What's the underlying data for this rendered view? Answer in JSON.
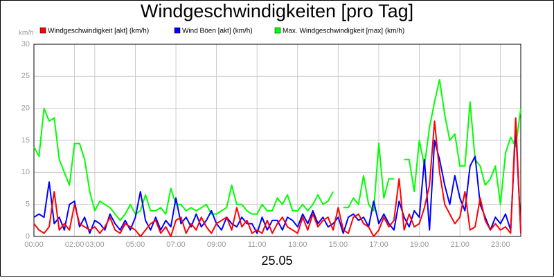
{
  "chart_data": {
    "type": "line",
    "title": "Windgeschwindigkeiten [pro Tag]",
    "xlabel": "25.05",
    "ylabel": "km/h",
    "x": [
      0,
      0.25,
      0.5,
      0.75,
      1,
      1.25,
      1.5,
      1.75,
      2,
      2.25,
      2.5,
      2.75,
      3,
      3.25,
      3.5,
      3.75,
      4,
      4.25,
      4.5,
      4.75,
      5,
      5.25,
      5.5,
      5.75,
      6,
      6.25,
      6.5,
      6.75,
      7,
      7.25,
      7.5,
      7.75,
      8,
      8.25,
      8.5,
      8.75,
      9,
      9.25,
      9.5,
      9.75,
      10,
      10.25,
      10.5,
      10.75,
      11,
      11.25,
      11.5,
      11.75,
      12,
      12.25,
      12.5,
      12.75,
      13,
      13.25,
      13.5,
      13.75,
      14,
      14.25,
      14.5,
      14.75,
      15,
      15.25,
      15.5,
      15.75,
      16,
      16.25,
      16.5,
      16.75,
      17,
      17.25,
      17.5,
      17.75,
      18,
      18.25,
      18.5,
      18.75,
      19,
      19.25,
      19.5,
      19.75,
      20,
      20.25,
      20.5,
      20.75,
      21,
      21.25,
      21.5,
      21.75,
      22,
      22.25,
      22.5,
      22.75,
      23,
      23.25,
      23.5,
      23.75,
      24
    ],
    "series": [
      {
        "name": "Windgeschwindigkeit [akt] (km/h)",
        "color": "#ff0000",
        "values": [
          2,
          1,
          0.5,
          1.5,
          7,
          1,
          2,
          1,
          5,
          2,
          1.5,
          1,
          1.5,
          0.5,
          1.5,
          3,
          1,
          0.5,
          2,
          1.5,
          1,
          0,
          1,
          2,
          2.5,
          0.5,
          1.5,
          0,
          2.5,
          3,
          0.5,
          2,
          1,
          3,
          1.5,
          0.5,
          2,
          2.5,
          3,
          1,
          4.5,
          1.5,
          2.5,
          0.5,
          1,
          0.5,
          2.5,
          0.5,
          2,
          3,
          1.5,
          1,
          0.5,
          3,
          1,
          3.5,
          1.5,
          2.5,
          3,
          1,
          4.5,
          1,
          0.5,
          3,
          3.5,
          2,
          1.5,
          0,
          1,
          3,
          1.5,
          2.5,
          9,
          1,
          3.5,
          1.5,
          2,
          4.5,
          8,
          18,
          10,
          5,
          3.5,
          2,
          3,
          7,
          1,
          1.5,
          6,
          2.5,
          1,
          2,
          1,
          1.5,
          0.5,
          18.5,
          0.5
        ]
      },
      {
        "name": "Wind Böen [akt] (km/h)",
        "color": "#0000ff",
        "values": [
          3,
          3.5,
          3,
          8.5,
          2,
          3,
          1,
          5,
          5.5,
          1.5,
          3,
          0.5,
          2.5,
          2,
          1,
          3.5,
          2,
          1,
          2.5,
          1,
          3,
          7,
          2.5,
          1,
          3,
          1,
          2.5,
          1.5,
          6,
          2,
          3,
          1.5,
          3.5,
          1.5,
          2.5,
          4,
          2,
          1,
          3,
          2,
          1.5,
          3,
          2,
          2,
          0.5,
          3,
          1,
          2.5,
          2.5,
          1,
          3,
          2.5,
          1.5,
          3.5,
          2,
          4,
          2,
          3,
          1.5,
          2,
          3,
          0.5,
          3,
          3.5,
          2.5,
          3,
          1.5,
          5.5,
          2,
          3.5,
          2,
          1,
          5.5,
          3,
          1.5,
          4,
          3,
          12,
          1,
          15,
          12,
          8,
          5,
          9.5,
          6,
          4,
          11,
          12.5,
          5,
          3,
          1,
          3,
          2,
          3.5,
          1,
          17,
          1
        ]
      },
      {
        "name": "Max. Windgeschwindigkeit [max] (km/h)",
        "color": "#00ff00",
        "values": [
          14,
          12.5,
          20,
          18,
          18.5,
          12,
          10,
          8,
          14.5,
          14.5,
          12,
          7,
          4,
          5.5,
          5,
          4.5,
          3.5,
          2.5,
          3.5,
          5,
          3.5,
          4,
          6.5,
          4,
          4,
          4.5,
          3.5,
          7.5,
          5,
          5,
          4,
          4.5,
          4,
          4.5,
          5,
          3.5,
          3.5,
          4,
          4.5,
          8,
          5,
          5,
          4,
          3.5,
          3.5,
          5,
          4,
          4,
          6,
          5,
          6.5,
          4,
          4,
          5,
          4,
          5,
          6.5,
          5,
          5.5,
          7,
          null,
          4.5,
          4.5,
          6,
          5,
          9.5,
          5,
          4,
          14.5,
          6,
          9,
          9,
          null,
          12,
          12,
          7,
          15,
          11,
          17,
          21,
          24.5,
          19,
          15,
          16,
          11,
          11,
          21,
          12,
          11,
          8,
          9,
          11,
          5,
          13,
          15.5,
          14,
          20
        ]
      }
    ],
    "xlim": [
      0,
      24
    ],
    "xticks": [
      {
        "value": 0,
        "label": "00:00"
      },
      {
        "value": 2,
        "label": "02:00"
      },
      {
        "value": 3,
        "label": "03:00"
      },
      {
        "value": 5,
        "label": "05:00"
      },
      {
        "value": 7,
        "label": "07:00"
      },
      {
        "value": 9,
        "label": "09:00"
      },
      {
        "value": 11,
        "label": "11:00"
      },
      {
        "value": 13,
        "label": "13:00"
      },
      {
        "value": 15,
        "label": "15:00"
      },
      {
        "value": 17,
        "label": "17:00"
      },
      {
        "value": 19,
        "label": "19:00"
      },
      {
        "value": 21,
        "label": "21:00"
      },
      {
        "value": 23,
        "label": "23:00"
      }
    ],
    "ylim": [
      0,
      30
    ],
    "yticks": [
      0,
      5,
      10,
      15,
      20,
      25,
      30
    ],
    "grid": true
  }
}
